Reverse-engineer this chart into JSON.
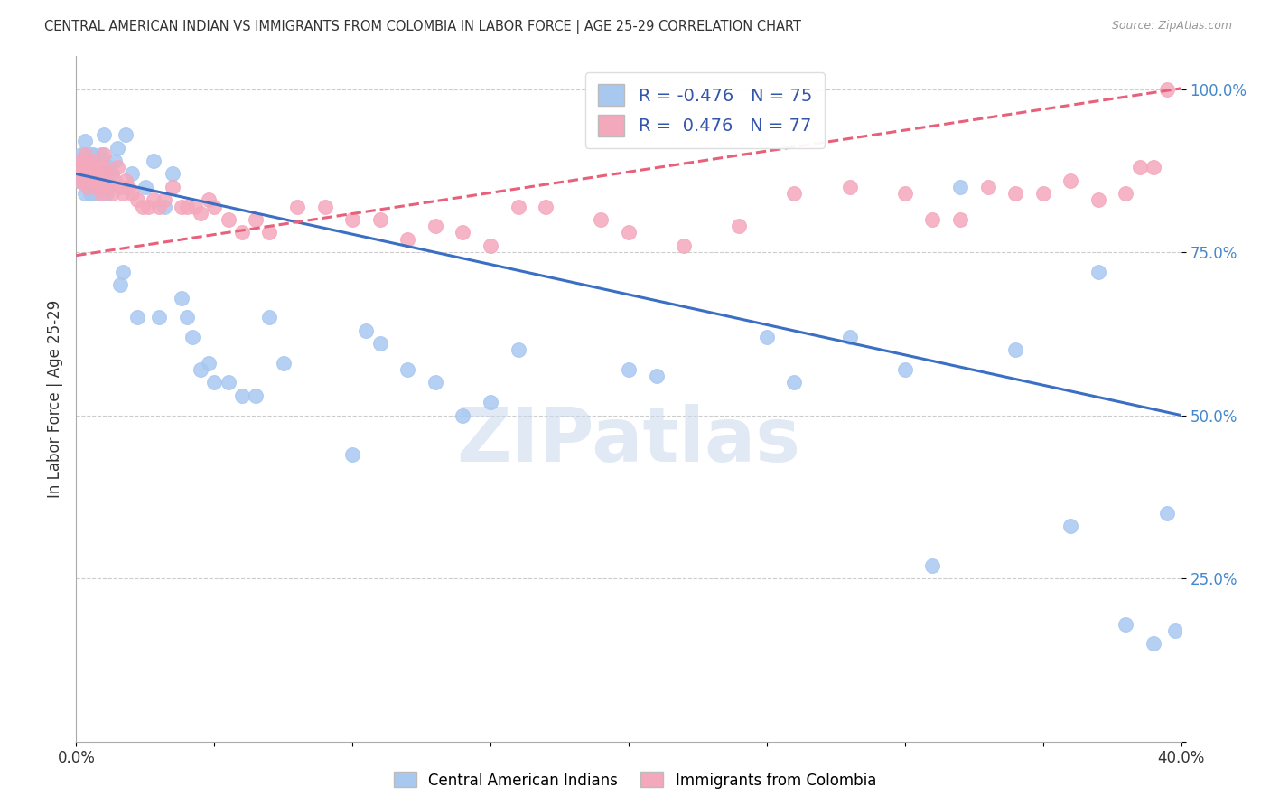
{
  "title": "CENTRAL AMERICAN INDIAN VS IMMIGRANTS FROM COLOMBIA IN LABOR FORCE | AGE 25-29 CORRELATION CHART",
  "source": "Source: ZipAtlas.com",
  "ylabel": "In Labor Force | Age 25-29",
  "x_min": 0.0,
  "x_max": 0.4,
  "y_min": 0.0,
  "y_max": 1.05,
  "x_ticks": [
    0.0,
    0.05,
    0.1,
    0.15,
    0.2,
    0.25,
    0.3,
    0.35,
    0.4
  ],
  "y_ticks": [
    0.0,
    0.25,
    0.5,
    0.75,
    1.0
  ],
  "y_tick_labels": [
    "",
    "25.0%",
    "50.0%",
    "75.0%",
    "100.0%"
  ],
  "blue_R": -0.476,
  "blue_N": 75,
  "pink_R": 0.476,
  "pink_N": 77,
  "blue_color": "#A8C8F0",
  "pink_color": "#F4A8BC",
  "blue_line_color": "#3A6FC4",
  "pink_line_color": "#E8607A",
  "background_color": "#FFFFFF",
  "grid_color": "#CCCCCC",
  "blue_line_intercept": 0.87,
  "blue_line_slope": -0.925,
  "pink_line_intercept": 0.745,
  "pink_line_slope": 0.64,
  "blue_points_x": [
    0.001,
    0.001,
    0.002,
    0.002,
    0.003,
    0.003,
    0.003,
    0.003,
    0.004,
    0.004,
    0.005,
    0.005,
    0.005,
    0.006,
    0.006,
    0.006,
    0.007,
    0.007,
    0.007,
    0.008,
    0.008,
    0.009,
    0.009,
    0.01,
    0.01,
    0.011,
    0.011,
    0.012,
    0.013,
    0.014,
    0.015,
    0.016,
    0.017,
    0.018,
    0.02,
    0.022,
    0.025,
    0.028,
    0.03,
    0.032,
    0.035,
    0.038,
    0.04,
    0.042,
    0.045,
    0.048,
    0.05,
    0.055,
    0.06,
    0.065,
    0.07,
    0.075,
    0.1,
    0.105,
    0.11,
    0.12,
    0.13,
    0.14,
    0.15,
    0.16,
    0.2,
    0.21,
    0.25,
    0.26,
    0.28,
    0.3,
    0.31,
    0.32,
    0.34,
    0.36,
    0.37,
    0.38,
    0.39,
    0.395,
    0.398
  ],
  "blue_points_y": [
    0.88,
    0.86,
    0.9,
    0.86,
    0.92,
    0.88,
    0.87,
    0.84,
    0.88,
    0.85,
    0.9,
    0.86,
    0.84,
    0.9,
    0.88,
    0.84,
    0.86,
    0.88,
    0.84,
    0.87,
    0.85,
    0.9,
    0.86,
    0.93,
    0.87,
    0.85,
    0.84,
    0.88,
    0.87,
    0.89,
    0.91,
    0.7,
    0.72,
    0.93,
    0.87,
    0.65,
    0.85,
    0.89,
    0.65,
    0.82,
    0.87,
    0.68,
    0.65,
    0.62,
    0.57,
    0.58,
    0.55,
    0.55,
    0.53,
    0.53,
    0.65,
    0.58,
    0.44,
    0.63,
    0.61,
    0.57,
    0.55,
    0.5,
    0.52,
    0.6,
    0.57,
    0.56,
    0.62,
    0.55,
    0.62,
    0.57,
    0.27,
    0.85,
    0.6,
    0.33,
    0.72,
    0.18,
    0.15,
    0.35,
    0.17
  ],
  "pink_points_x": [
    0.001,
    0.001,
    0.002,
    0.002,
    0.003,
    0.003,
    0.003,
    0.004,
    0.004,
    0.005,
    0.005,
    0.006,
    0.006,
    0.007,
    0.007,
    0.008,
    0.008,
    0.009,
    0.009,
    0.01,
    0.01,
    0.011,
    0.011,
    0.012,
    0.013,
    0.014,
    0.015,
    0.016,
    0.017,
    0.018,
    0.019,
    0.02,
    0.022,
    0.024,
    0.026,
    0.028,
    0.03,
    0.032,
    0.035,
    0.038,
    0.04,
    0.043,
    0.045,
    0.048,
    0.05,
    0.055,
    0.06,
    0.065,
    0.07,
    0.08,
    0.09,
    0.1,
    0.11,
    0.12,
    0.13,
    0.14,
    0.15,
    0.16,
    0.17,
    0.19,
    0.2,
    0.22,
    0.24,
    0.26,
    0.28,
    0.3,
    0.31,
    0.32,
    0.33,
    0.34,
    0.35,
    0.36,
    0.37,
    0.38,
    0.385,
    0.39,
    0.395
  ],
  "pink_points_y": [
    0.88,
    0.86,
    0.89,
    0.87,
    0.9,
    0.88,
    0.86,
    0.87,
    0.85,
    0.88,
    0.86,
    0.87,
    0.89,
    0.86,
    0.88,
    0.87,
    0.85,
    0.84,
    0.86,
    0.88,
    0.9,
    0.86,
    0.87,
    0.85,
    0.84,
    0.86,
    0.88,
    0.85,
    0.84,
    0.86,
    0.85,
    0.84,
    0.83,
    0.82,
    0.82,
    0.83,
    0.82,
    0.83,
    0.85,
    0.82,
    0.82,
    0.82,
    0.81,
    0.83,
    0.82,
    0.8,
    0.78,
    0.8,
    0.78,
    0.82,
    0.82,
    0.8,
    0.8,
    0.77,
    0.79,
    0.78,
    0.76,
    0.82,
    0.82,
    0.8,
    0.78,
    0.76,
    0.79,
    0.84,
    0.85,
    0.84,
    0.8,
    0.8,
    0.85,
    0.84,
    0.84,
    0.86,
    0.83,
    0.84,
    0.88,
    0.88,
    1.0
  ]
}
